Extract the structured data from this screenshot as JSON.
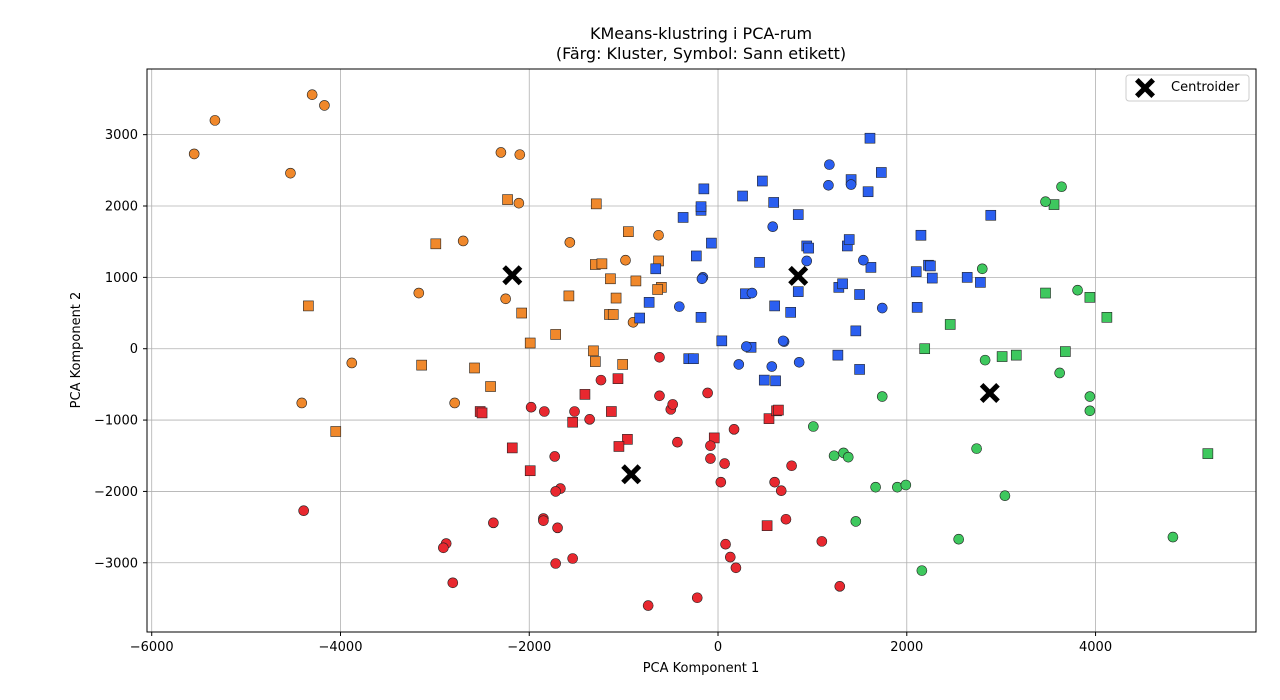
{
  "chart_data": {
    "type": "scatter",
    "title_line1": "KMeans-klustring i PCA-rum",
    "title_line2": "(Färg: Kluster, Symbol: Sann etikett)",
    "xlabel": "PCA Komponent 1",
    "ylabel": "PCA Komponent 2",
    "xlim": [
      -6050,
      5700
    ],
    "ylim": [
      -3970,
      3920
    ],
    "xticks": [
      -6000,
      -4000,
      -2000,
      0,
      2000,
      4000
    ],
    "xtick_labels": [
      "−6000",
      "−4000",
      "−2000",
      "0",
      "2000",
      "4000"
    ],
    "yticks": [
      -3000,
      -2000,
      -1000,
      0,
      1000,
      2000,
      3000
    ],
    "ytick_labels": [
      "−3000",
      "−2000",
      "−1000",
      "0",
      "1000",
      "2000",
      "3000"
    ],
    "grid": true,
    "legend": {
      "position": "top-right",
      "entries": [
        "Centroider"
      ]
    },
    "cluster_colors": [
      "#f0882b",
      "#2b5ff0",
      "#e8282f",
      "#3ec85e"
    ],
    "series": [
      {
        "color": "#f0882b",
        "circles": [
          [
            -5550,
            2730
          ],
          [
            -5330,
            3200
          ],
          [
            -4300,
            3560
          ],
          [
            -4170,
            3410
          ],
          [
            -4530,
            2460
          ],
          [
            -2300,
            2750
          ],
          [
            -2100,
            2720
          ],
          [
            -2110,
            2040
          ],
          [
            -1570,
            1490
          ],
          [
            -2700,
            1510
          ],
          [
            -3170,
            780
          ],
          [
            -2250,
            700
          ],
          [
            -3880,
            -200
          ],
          [
            -4410,
            -760
          ],
          [
            -2790,
            -760
          ],
          [
            -980,
            1240
          ],
          [
            -900,
            370
          ],
          [
            -630,
            1590
          ]
        ],
        "squares": [
          [
            -2230,
            2090
          ],
          [
            -1290,
            2030
          ],
          [
            -2990,
            1470
          ],
          [
            -4340,
            600
          ],
          [
            -2080,
            500
          ],
          [
            -1990,
            80
          ],
          [
            -1580,
            740
          ],
          [
            -1720,
            200
          ],
          [
            -1300,
            1180
          ],
          [
            -1230,
            1190
          ],
          [
            -1140,
            980
          ],
          [
            -1080,
            710
          ],
          [
            -1150,
            480
          ],
          [
            -1110,
            480
          ],
          [
            -1320,
            -30
          ],
          [
            -1300,
            -180
          ],
          [
            -1010,
            -220
          ],
          [
            -2580,
            -270
          ],
          [
            -2410,
            -530
          ],
          [
            -3140,
            -230
          ],
          [
            -4050,
            -1160
          ],
          [
            -950,
            1640
          ],
          [
            -870,
            950
          ],
          [
            -630,
            1230
          ],
          [
            -600,
            860
          ],
          [
            -640,
            830
          ]
        ]
      },
      {
        "color": "#2b5ff0",
        "circles": [
          [
            1180,
            2580
          ],
          [
            1170,
            2290
          ],
          [
            1410,
            2300
          ],
          [
            580,
            1710
          ],
          [
            940,
            1230
          ],
          [
            1540,
            1240
          ],
          [
            -160,
            1000
          ],
          [
            -170,
            980
          ],
          [
            360,
            780
          ],
          [
            -410,
            590
          ],
          [
            1740,
            570
          ],
          [
            700,
            100
          ],
          [
            690,
            110
          ],
          [
            300,
            30
          ],
          [
            220,
            -220
          ],
          [
            570,
            -250
          ],
          [
            860,
            -190
          ]
        ],
        "squares": [
          [
            1610,
            2950
          ],
          [
            470,
            2350
          ],
          [
            1730,
            2470
          ],
          [
            1410,
            2370
          ],
          [
            -150,
            2240
          ],
          [
            260,
            2140
          ],
          [
            1590,
            2200
          ],
          [
            590,
            2050
          ],
          [
            -180,
            1940
          ],
          [
            -180,
            1990
          ],
          [
            850,
            1880
          ],
          [
            -370,
            1840
          ],
          [
            2890,
            1870
          ],
          [
            -70,
            1480
          ],
          [
            940,
            1440
          ],
          [
            960,
            1410
          ],
          [
            1370,
            1440
          ],
          [
            1390,
            1530
          ],
          [
            2150,
            1590
          ],
          [
            -230,
            1300
          ],
          [
            440,
            1210
          ],
          [
            1620,
            1140
          ],
          [
            2100,
            1080
          ],
          [
            2230,
            1170
          ],
          [
            2250,
            1160
          ],
          [
            2270,
            990
          ],
          [
            2640,
            1000
          ],
          [
            2780,
            930
          ],
          [
            1280,
            860
          ],
          [
            1320,
            910
          ],
          [
            850,
            800
          ],
          [
            290,
            770
          ],
          [
            1500,
            760
          ],
          [
            -660,
            1120
          ],
          [
            -730,
            650
          ],
          [
            -830,
            430
          ],
          [
            -180,
            440
          ],
          [
            770,
            510
          ],
          [
            600,
            600
          ],
          [
            1460,
            250
          ],
          [
            2110,
            580
          ],
          [
            40,
            110
          ],
          [
            350,
            20
          ],
          [
            -310,
            -140
          ],
          [
            -260,
            -140
          ],
          [
            1270,
            -90
          ],
          [
            1500,
            -290
          ],
          [
            490,
            -440
          ],
          [
            610,
            -450
          ]
        ]
      },
      {
        "color": "#e8282f",
        "circles": [
          [
            -620,
            -120
          ],
          [
            -1240,
            -440
          ],
          [
            -620,
            -660
          ],
          [
            -500,
            -850
          ],
          [
            -480,
            -780
          ],
          [
            -110,
            -620
          ],
          [
            -1980,
            -820
          ],
          [
            -1840,
            -880
          ],
          [
            -1520,
            -880
          ],
          [
            -1360,
            -990
          ],
          [
            -80,
            -1360
          ],
          [
            -80,
            -1540
          ],
          [
            70,
            -1610
          ],
          [
            170,
            -1130
          ],
          [
            -430,
            -1310
          ],
          [
            -1730,
            -1510
          ],
          [
            -1670,
            -1960
          ],
          [
            -1720,
            -2000
          ],
          [
            30,
            -1870
          ],
          [
            600,
            -1870
          ],
          [
            670,
            -1990
          ],
          [
            780,
            -1640
          ],
          [
            -1850,
            -2380
          ],
          [
            -1850,
            -2410
          ],
          [
            -1700,
            -2510
          ],
          [
            -1540,
            -2940
          ],
          [
            -1720,
            -3010
          ],
          [
            -2380,
            -2440
          ],
          [
            -2880,
            -2730
          ],
          [
            -2910,
            -2790
          ],
          [
            -2810,
            -3280
          ],
          [
            -4390,
            -2270
          ],
          [
            80,
            -2740
          ],
          [
            130,
            -2920
          ],
          [
            190,
            -3070
          ],
          [
            720,
            -2390
          ],
          [
            1100,
            -2700
          ],
          [
            1290,
            -3330
          ],
          [
            -740,
            -3600
          ],
          [
            -220,
            -3490
          ]
        ],
        "squares": [
          [
            -1410,
            -640
          ],
          [
            -1060,
            -420
          ],
          [
            -1130,
            -880
          ],
          [
            -2520,
            -880
          ],
          [
            -2500,
            -900
          ],
          [
            -1540,
            -1030
          ],
          [
            -960,
            -1270
          ],
          [
            -1050,
            -1370
          ],
          [
            -40,
            -1250
          ],
          [
            -2180,
            -1390
          ],
          [
            -1990,
            -1710
          ],
          [
            540,
            -980
          ],
          [
            620,
            -870
          ],
          [
            640,
            -860
          ],
          [
            520,
            -2480
          ]
        ]
      },
      {
        "color": "#3ec85e",
        "circles": [
          [
            3640,
            2270
          ],
          [
            3470,
            2060
          ],
          [
            2800,
            1120
          ],
          [
            3810,
            820
          ],
          [
            2830,
            -160
          ],
          [
            3620,
            -340
          ],
          [
            3940,
            -670
          ],
          [
            3940,
            -870
          ],
          [
            1740,
            -670
          ],
          [
            1010,
            -1090
          ],
          [
            1230,
            -1500
          ],
          [
            1330,
            -1460
          ],
          [
            1380,
            -1520
          ],
          [
            2740,
            -1400
          ],
          [
            1670,
            -1940
          ],
          [
            1900,
            -1940
          ],
          [
            1990,
            -1910
          ],
          [
            3040,
            -2060
          ],
          [
            1460,
            -2420
          ],
          [
            2550,
            -2670
          ],
          [
            4820,
            -2640
          ],
          [
            2160,
            -3110
          ]
        ],
        "squares": [
          [
            3560,
            2020
          ],
          [
            3470,
            780
          ],
          [
            3940,
            720
          ],
          [
            4120,
            440
          ],
          [
            2460,
            340
          ],
          [
            2190,
            0
          ],
          [
            3010,
            -110
          ],
          [
            3160,
            -90
          ],
          [
            3680,
            -40
          ],
          [
            5190,
            -1470
          ]
        ]
      }
    ],
    "centroids": [
      [
        -2180,
        1030
      ],
      [
        850,
        1020
      ],
      [
        2880,
        -620
      ],
      [
        -920,
        -1760
      ]
    ]
  }
}
